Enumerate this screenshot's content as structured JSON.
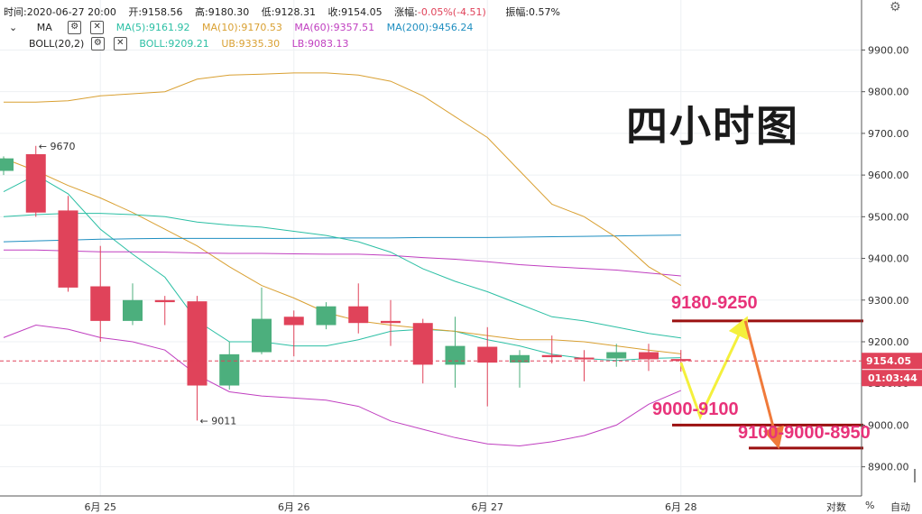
{
  "info": {
    "time_label": "时间:2020-06-27 20:00",
    "open_label": "开:9158.56",
    "high_label": "高:9180.30",
    "low_label": "低:9128.31",
    "close_label": "收:9154.05",
    "change_label": "涨幅:",
    "change_value": "-0.05%(-4.51)",
    "amplitude_label": "振幅:0.57%",
    "ma_name": "MA",
    "ma5": "MA(5):9161.92",
    "ma10": "MA(10):9170.53",
    "ma60": "MA(60):9357.51",
    "ma200": "MA(200):9456.24",
    "boll_name": "BOLL(20,2)",
    "boll": "BOLL:9209.21",
    "ub": "UB:9335.30",
    "lb": "LB:9083.13"
  },
  "chart_title": "四小时图",
  "annotations": {
    "target_high": "9180-9250",
    "support_low": "9000-9100",
    "downside": "9100-9000-8950"
  },
  "markers": {
    "high": "← 9670",
    "low": "← 9011"
  },
  "price_tag": {
    "price": "9154.05",
    "countdown": "01:03:44"
  },
  "bottom": {
    "log": "对数",
    "percent": "%",
    "auto": "自动"
  },
  "colors": {
    "up": "#4caf7d",
    "down": "#e0435a",
    "ma5": "#2bbfa4",
    "ma10": "#d9a032",
    "ma60": "#c03fc0",
    "ma200": "#1e8ec0",
    "ub": "#d9a032",
    "lb": "#c03fc0",
    "annotation": "#e8337a",
    "arrow_up": "#f4f03c",
    "arrow_down": "#f07a3a",
    "level": "#9b1010"
  },
  "chart_data": {
    "type": "candlestick",
    "ylim": [
      8830,
      10020
    ],
    "yticks": [
      8900,
      9000,
      9100,
      9200,
      9300,
      9400,
      9500,
      9600,
      9700,
      9800,
      9900
    ],
    "xticks": [
      {
        "i": 3,
        "label": "6月 25"
      },
      {
        "i": 9,
        "label": "6月 26"
      },
      {
        "i": 15,
        "label": "6月 27"
      },
      {
        "i": 21,
        "label": "6月 28"
      }
    ],
    "candles": [
      {
        "o": 9610,
        "h": 9645,
        "l": 9600,
        "c": 9640
      },
      {
        "o": 9650,
        "h": 9670,
        "l": 9500,
        "c": 9510
      },
      {
        "o": 9515,
        "h": 9550,
        "l": 9320,
        "c": 9330
      },
      {
        "o": 9333,
        "h": 9430,
        "l": 9200,
        "c": 9250
      },
      {
        "o": 9250,
        "h": 9340,
        "l": 9240,
        "c": 9300
      },
      {
        "o": 9300,
        "h": 9310,
        "l": 9240,
        "c": 9295
      },
      {
        "o": 9297,
        "h": 9310,
        "l": 9011,
        "c": 9095
      },
      {
        "o": 9095,
        "h": 9200,
        "l": 9085,
        "c": 9170
      },
      {
        "o": 9175,
        "h": 9330,
        "l": 9170,
        "c": 9255
      },
      {
        "o": 9260,
        "h": 9275,
        "l": 9165,
        "c": 9240
      },
      {
        "o": 9240,
        "h": 9295,
        "l": 9230,
        "c": 9285
      },
      {
        "o": 9285,
        "h": 9340,
        "l": 9220,
        "c": 9245
      },
      {
        "o": 9250,
        "h": 9300,
        "l": 9190,
        "c": 9245
      },
      {
        "o": 9245,
        "h": 9255,
        "l": 9100,
        "c": 9145
      },
      {
        "o": 9145,
        "h": 9260,
        "l": 9090,
        "c": 9190
      },
      {
        "o": 9188,
        "h": 9235,
        "l": 9045,
        "c": 9150
      },
      {
        "o": 9150,
        "h": 9180,
        "l": 9090,
        "c": 9168
      },
      {
        "o": 9168,
        "h": 9215,
        "l": 9148,
        "c": 9163
      },
      {
        "o": 9162,
        "h": 9180,
        "l": 9105,
        "c": 9160
      },
      {
        "o": 9160,
        "h": 9195,
        "l": 9140,
        "c": 9175
      },
      {
        "o": 9175,
        "h": 9195,
        "l": 9130,
        "c": 9158
      },
      {
        "o": 9158.56,
        "h": 9180.3,
        "l": 9128.31,
        "c": 9154.05
      }
    ],
    "series": [
      {
        "name": "MA(5)",
        "values": [
          9560,
          9600,
          9555,
          9470,
          9410,
          9355,
          9250,
          9200,
          9200,
          9190,
          9190,
          9205,
          9225,
          9230,
          9225,
          9205,
          9190,
          9170,
          9160,
          9155,
          9160,
          9162
        ]
      },
      {
        "name": "MA(10)",
        "values": [
          9640,
          9610,
          9575,
          9545,
          9510,
          9470,
          9430,
          9380,
          9335,
          9305,
          9270,
          9250,
          9240,
          9232,
          9225,
          9215,
          9205,
          9205,
          9200,
          9190,
          9180,
          9171
        ]
      },
      {
        "name": "MA(60)",
        "values": [
          9420,
          9420,
          9418,
          9416,
          9416,
          9415,
          9413,
          9412,
          9412,
          9411,
          9410,
          9410,
          9407,
          9402,
          9398,
          9392,
          9385,
          9380,
          9376,
          9372,
          9365,
          9358
        ]
      },
      {
        "name": "MA(200)",
        "values": [
          9440,
          9442,
          9444,
          9446,
          9447,
          9448,
          9448,
          9448,
          9448,
          9448,
          9449,
          9449,
          9449,
          9450,
          9450,
          9450,
          9451,
          9452,
          9453,
          9454,
          9455,
          9456
        ]
      },
      {
        "name": "BOLL",
        "values": [
          9500,
          9505,
          9508,
          9508,
          9505,
          9500,
          9487,
          9480,
          9475,
          9465,
          9455,
          9440,
          9415,
          9375,
          9345,
          9320,
          9290,
          9260,
          9250,
          9235,
          9220,
          9209
        ]
      },
      {
        "name": "UB",
        "values": [
          9775,
          9775,
          9778,
          9790,
          9795,
          9800,
          9830,
          9840,
          9842,
          9845,
          9845,
          9840,
          9825,
          9790,
          9740,
          9690,
          9610,
          9530,
          9500,
          9450,
          9380,
          9335
        ]
      },
      {
        "name": "LB",
        "values": [
          9210,
          9240,
          9230,
          9210,
          9200,
          9180,
          9120,
          9080,
          9070,
          9065,
          9060,
          9045,
          9010,
          8990,
          8970,
          8955,
          8950,
          8960,
          8975,
          9000,
          9050,
          9083
        ]
      }
    ],
    "levels": [
      9250,
      9000,
      8945
    ],
    "projection": [
      {
        "i": 21,
        "p": 9150
      },
      {
        "i": 21.6,
        "p": 9020
      },
      {
        "i": 23.0,
        "p": 9250
      },
      {
        "i": 24.0,
        "p": 8955
      }
    ]
  }
}
